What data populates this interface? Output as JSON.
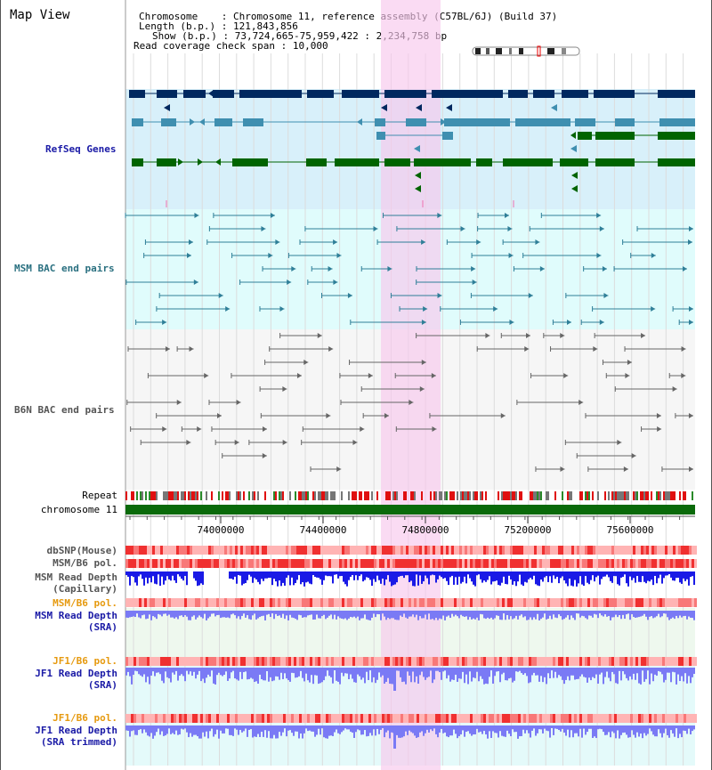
{
  "view_title": "Map View",
  "info": {
    "chromosome_key": "Chromosome",
    "chromosome_val": "Chromosome 11, reference assembly (C57BL/6J) (Build 37)",
    "length_key": "Length (b.p.)",
    "length_val": "121,843,856",
    "show_key": "Show (b.p.)",
    "show_val": "73,724,665-75,959,422 : 2,234,758 bp",
    "coverage_key": "Read coverage check span",
    "coverage_val": "10,000"
  },
  "tracks": {
    "refseq": "RefSeq Genes",
    "msm_bac": "MSM BAC end pairs",
    "b6n_bac": "B6N BAC end pairs",
    "repeat": "Repeat",
    "chromosome": "chromosome 11",
    "dbsnp": "dbSNP(Mouse)",
    "msm_b6_pol_1": "MSM/B6 pol.",
    "msm_read_depth_cap_1": "MSM Read Depth",
    "msm_read_depth_cap_2": "(Capillary)",
    "msm_b6_pol_2": "MSM/B6 pol.",
    "msm_read_depth_sra_1": "MSM Read Depth",
    "msm_read_depth_sra_2": "(SRA)",
    "jf1_b6_pol_1": "JF1/B6 pol.",
    "jf1_read_depth_sra_1": "JF1 Read Depth",
    "jf1_read_depth_sra_2": "(SRA)",
    "jf1_b6_pol_2": "JF1/B6 pol.",
    "jf1_read_depth_trim_1": "JF1 Read Depth",
    "jf1_read_depth_trim_2": "(SRA trimmed)"
  },
  "axis_ticks": [
    "74000000",
    "74400000",
    "74800000",
    "75200000",
    "75600000"
  ],
  "colors": {
    "refseq_bg": "#d8f0fa",
    "msm_bg": "#e0fcfc",
    "b6n_bg": "#f6f6f6",
    "highlight": "#f8c8ec",
    "gene_dark": "#00285f",
    "gene_mid": "#3f8fb0",
    "gene_green": "#006400",
    "chrom_bar": "#0a6a0a",
    "depth_blue": "#1a1ae6",
    "depth_light": "#7a7af5",
    "pol_red": "#f03030",
    "pol_pink": "#ffb4b4"
  }
}
